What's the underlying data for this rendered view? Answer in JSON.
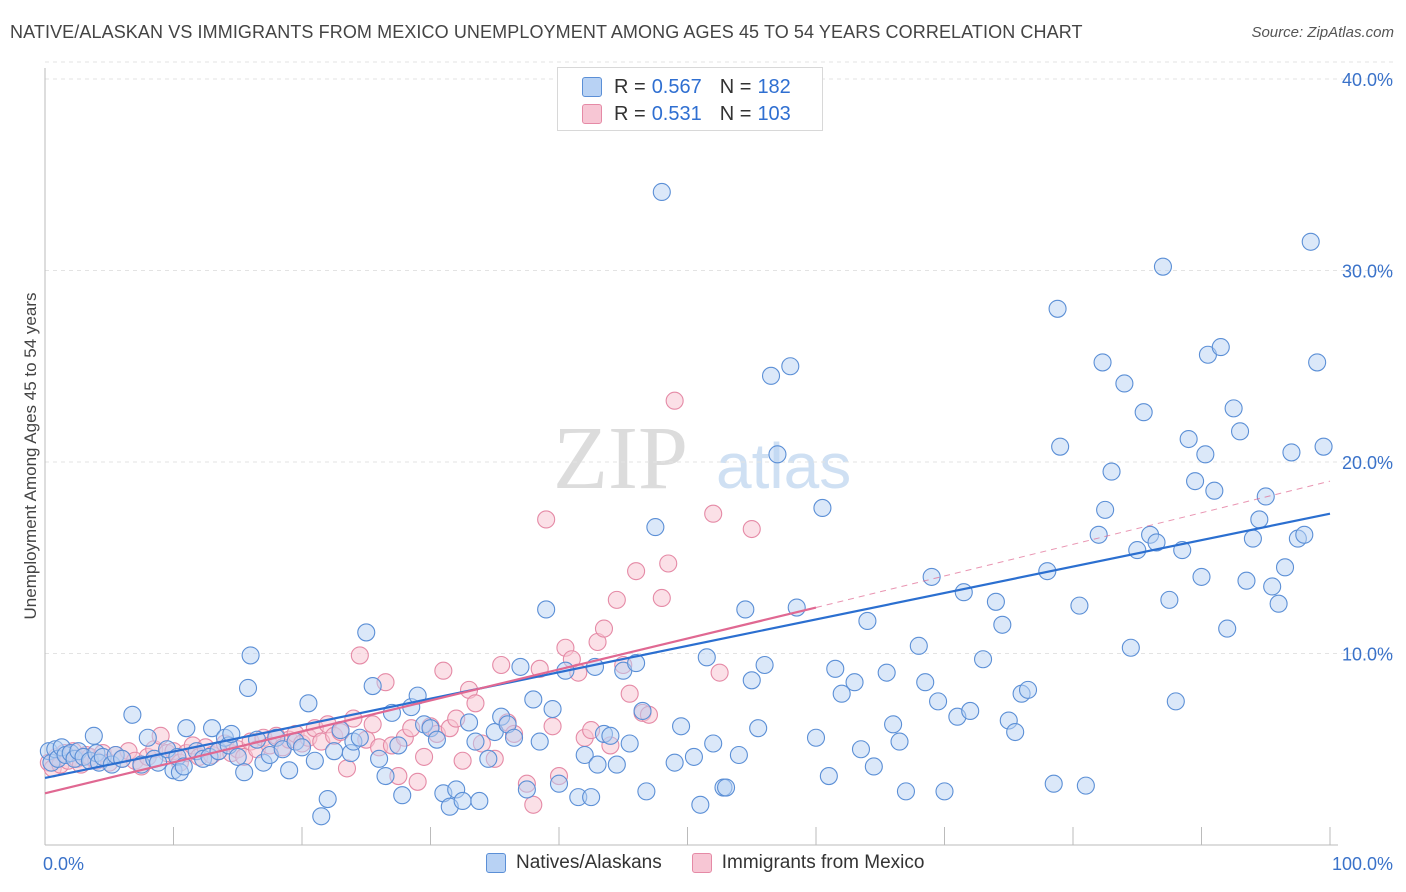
{
  "header": {
    "title": "NATIVE/ALASKAN VS IMMIGRANTS FROM MEXICO UNEMPLOYMENT AMONG AGES 45 TO 54 YEARS CORRELATION CHART",
    "source": "Source: ZipAtlas.com"
  },
  "watermark": {
    "part1": "ZIP",
    "part2": "atlas"
  },
  "stats_legend": {
    "rows": [
      {
        "r_label": "R =",
        "r_value": "0.567",
        "n_label": "N =",
        "n_value": "182"
      },
      {
        "r_label": "R =",
        "r_value": "0.531",
        "n_label": "N =",
        "n_value": "103"
      }
    ]
  },
  "chart_data": {
    "type": "scatter",
    "title": "NATIVE/ALASKAN VS IMMIGRANTS FROM MEXICO UNEMPLOYMENT AMONG AGES 45 TO 54 YEARS CORRELATION CHART",
    "xlabel": "",
    "ylabel": "Unemployment Among Ages 45 to 54 years",
    "xlim": [
      0,
      100
    ],
    "ylim": [
      0,
      42
    ],
    "x_tick_labels": [
      "0.0%",
      "100.0%"
    ],
    "y_ticks": [
      10,
      20,
      30,
      40
    ],
    "y_tick_labels": [
      "10.0%",
      "20.0%",
      "30.0%",
      "40.0%"
    ],
    "grid": true,
    "legend": [
      "Natives/Alaskans",
      "Immigrants from Mexico"
    ],
    "colors": {
      "blue": "#5b8fd6",
      "blue_fill": "#b8d2f4",
      "pink": "#e58aa6",
      "pink_fill": "#f7c6d4",
      "blue_line": "#2b6fd0",
      "pink_line": "#e06892"
    },
    "series": [
      {
        "name": "Natives/Alaskans",
        "R": 0.567,
        "N": 182,
        "trend": {
          "x": [
            0,
            100
          ],
          "y": [
            3.5,
            17.3
          ],
          "style": "solid"
        },
        "points": [
          [
            0.3,
            4.9
          ],
          [
            0.5,
            4.3
          ],
          [
            0.8,
            5.0
          ],
          [
            1.0,
            4.5
          ],
          [
            1.3,
            5.1
          ],
          [
            1.6,
            4.7
          ],
          [
            2.0,
            4.8
          ],
          [
            2.3,
            4.5
          ],
          [
            2.6,
            4.9
          ],
          [
            3.0,
            4.6
          ],
          [
            3.5,
            4.4
          ],
          [
            3.8,
            5.7
          ],
          [
            4.0,
            4.8
          ],
          [
            4.2,
            4.3
          ],
          [
            4.5,
            4.6
          ],
          [
            5.2,
            4.2
          ],
          [
            5.5,
            4.7
          ],
          [
            6.0,
            4.5
          ],
          [
            6.8,
            6.8
          ],
          [
            7.5,
            4.2
          ],
          [
            8.0,
            5.6
          ],
          [
            8.5,
            4.5
          ],
          [
            8.8,
            4.3
          ],
          [
            9.5,
            5.0
          ],
          [
            10.0,
            3.9
          ],
          [
            10.3,
            4.6
          ],
          [
            10.5,
            3.8
          ],
          [
            10.8,
            4.1
          ],
          [
            11.0,
            6.1
          ],
          [
            11.8,
            4.9
          ],
          [
            12.3,
            4.5
          ],
          [
            12.8,
            4.6
          ],
          [
            13.0,
            6.1
          ],
          [
            13.5,
            4.9
          ],
          [
            14.0,
            5.6
          ],
          [
            14.3,
            5.2
          ],
          [
            14.5,
            5.8
          ],
          [
            15.0,
            4.6
          ],
          [
            15.5,
            3.8
          ],
          [
            15.8,
            8.2
          ],
          [
            16.0,
            9.9
          ],
          [
            16.5,
            5.5
          ],
          [
            17.0,
            4.3
          ],
          [
            17.5,
            4.7
          ],
          [
            18.0,
            5.6
          ],
          [
            18.5,
            5.0
          ],
          [
            19.0,
            3.9
          ],
          [
            19.5,
            5.4
          ],
          [
            20.0,
            5.1
          ],
          [
            20.5,
            7.4
          ],
          [
            21.0,
            4.4
          ],
          [
            21.5,
            1.5
          ],
          [
            22.0,
            2.4
          ],
          [
            22.5,
            4.9
          ],
          [
            23.0,
            6.0
          ],
          [
            23.8,
            4.8
          ],
          [
            24.0,
            5.4
          ],
          [
            24.5,
            5.6
          ],
          [
            25.0,
            11.1
          ],
          [
            25.5,
            8.3
          ],
          [
            26.0,
            4.5
          ],
          [
            26.5,
            3.6
          ],
          [
            27.0,
            6.9
          ],
          [
            27.5,
            5.2
          ],
          [
            27.8,
            2.6
          ],
          [
            28.5,
            7.2
          ],
          [
            29.0,
            7.8
          ],
          [
            29.5,
            6.3
          ],
          [
            30.0,
            6.1
          ],
          [
            30.5,
            5.5
          ],
          [
            31.0,
            2.7
          ],
          [
            31.5,
            2.0
          ],
          [
            32.0,
            2.9
          ],
          [
            32.5,
            2.3
          ],
          [
            33.0,
            6.4
          ],
          [
            33.5,
            5.4
          ],
          [
            33.8,
            2.3
          ],
          [
            34.5,
            4.5
          ],
          [
            35.0,
            5.9
          ],
          [
            35.5,
            6.7
          ],
          [
            36.0,
            6.3
          ],
          [
            36.5,
            5.6
          ],
          [
            37.0,
            9.3
          ],
          [
            37.5,
            2.9
          ],
          [
            38.0,
            7.6
          ],
          [
            38.5,
            5.4
          ],
          [
            39.0,
            12.3
          ],
          [
            39.5,
            7.1
          ],
          [
            40.0,
            3.2
          ],
          [
            40.5,
            9.1
          ],
          [
            41.5,
            2.5
          ],
          [
            42.0,
            4.7
          ],
          [
            42.5,
            2.5
          ],
          [
            42.8,
            9.3
          ],
          [
            43.0,
            4.2
          ],
          [
            43.5,
            5.8
          ],
          [
            44.0,
            5.7
          ],
          [
            44.5,
            4.2
          ],
          [
            45.0,
            9.1
          ],
          [
            45.5,
            5.3
          ],
          [
            46.0,
            9.5
          ],
          [
            46.5,
            7.0
          ],
          [
            46.8,
            2.8
          ],
          [
            47.5,
            16.6
          ],
          [
            48.0,
            34.1
          ],
          [
            49.0,
            4.3
          ],
          [
            49.5,
            6.2
          ],
          [
            50.5,
            4.6
          ],
          [
            51.0,
            2.1
          ],
          [
            51.5,
            9.8
          ],
          [
            52.0,
            5.3
          ],
          [
            52.8,
            3.0
          ],
          [
            53.0,
            3.0
          ],
          [
            54.0,
            4.7
          ],
          [
            54.5,
            12.3
          ],
          [
            55.0,
            8.6
          ],
          [
            55.5,
            6.1
          ],
          [
            56.0,
            9.4
          ],
          [
            56.5,
            24.5
          ],
          [
            57.0,
            20.4
          ],
          [
            58.0,
            25.0
          ],
          [
            58.5,
            12.4
          ],
          [
            60.0,
            5.6
          ],
          [
            60.5,
            17.6
          ],
          [
            61.0,
            3.6
          ],
          [
            61.5,
            9.2
          ],
          [
            62.0,
            7.9
          ],
          [
            63.0,
            8.5
          ],
          [
            63.5,
            5.0
          ],
          [
            64.0,
            11.7
          ],
          [
            64.5,
            4.1
          ],
          [
            65.5,
            9.0
          ],
          [
            66.0,
            6.3
          ],
          [
            66.5,
            5.4
          ],
          [
            67.0,
            2.8
          ],
          [
            68.0,
            10.4
          ],
          [
            68.5,
            8.5
          ],
          [
            69.0,
            14.0
          ],
          [
            69.5,
            7.5
          ],
          [
            70.0,
            2.8
          ],
          [
            71.0,
            6.7
          ],
          [
            71.5,
            13.2
          ],
          [
            72.0,
            7.0
          ],
          [
            73.0,
            9.7
          ],
          [
            74.0,
            12.7
          ],
          [
            74.5,
            11.5
          ],
          [
            75.0,
            6.5
          ],
          [
            75.5,
            5.9
          ],
          [
            76.0,
            7.9
          ],
          [
            76.5,
            8.1
          ],
          [
            78.0,
            14.3
          ],
          [
            78.5,
            3.2
          ],
          [
            78.8,
            28.0
          ],
          [
            79.0,
            20.8
          ],
          [
            80.5,
            12.5
          ],
          [
            81.0,
            3.1
          ],
          [
            82.0,
            16.2
          ],
          [
            82.3,
            25.2
          ],
          [
            82.5,
            17.5
          ],
          [
            83.0,
            19.5
          ],
          [
            84.0,
            24.1
          ],
          [
            84.5,
            10.3
          ],
          [
            85.0,
            15.4
          ],
          [
            85.5,
            22.6
          ],
          [
            86.0,
            16.2
          ],
          [
            86.5,
            15.8
          ],
          [
            87.0,
            30.2
          ],
          [
            87.5,
            12.8
          ],
          [
            88.0,
            7.5
          ],
          [
            88.5,
            15.4
          ],
          [
            89.0,
            21.2
          ],
          [
            89.5,
            19.0
          ],
          [
            90.0,
            14.0
          ],
          [
            90.3,
            20.4
          ],
          [
            90.5,
            25.6
          ],
          [
            91.0,
            18.5
          ],
          [
            91.5,
            26.0
          ],
          [
            92.0,
            11.3
          ],
          [
            92.5,
            22.8
          ],
          [
            93.0,
            21.6
          ],
          [
            93.5,
            13.8
          ],
          [
            94.0,
            16.0
          ],
          [
            94.5,
            17.0
          ],
          [
            95.0,
            18.2
          ],
          [
            95.5,
            13.5
          ],
          [
            96.0,
            12.6
          ],
          [
            96.5,
            14.5
          ],
          [
            97.0,
            20.5
          ],
          [
            97.5,
            16.0
          ],
          [
            98.0,
            16.2
          ],
          [
            98.5,
            31.5
          ],
          [
            99.0,
            25.2
          ],
          [
            99.5,
            20.8
          ]
        ]
      },
      {
        "name": "Immigrants from Mexico",
        "R": 0.531,
        "N": 103,
        "trend": {
          "x": [
            0,
            60
          ],
          "y": [
            2.7,
            12.4
          ],
          "style": "solid"
        },
        "trend_extension": {
          "x": [
            60,
            100
          ],
          "y": [
            12.4,
            19.0
          ],
          "style": "dashed"
        },
        "points": [
          [
            0.3,
            4.3
          ],
          [
            0.6,
            4.0
          ],
          [
            0.9,
            4.6
          ],
          [
            1.2,
            4.2
          ],
          [
            1.5,
            4.8
          ],
          [
            1.8,
            4.4
          ],
          [
            2.2,
            4.9
          ],
          [
            2.5,
            4.5
          ],
          [
            2.8,
            4.2
          ],
          [
            3.2,
            4.7
          ],
          [
            3.5,
            4.6
          ],
          [
            4.0,
            4.4
          ],
          [
            4.5,
            4.8
          ],
          [
            5.0,
            4.3
          ],
          [
            5.5,
            4.7
          ],
          [
            6.0,
            4.5
          ],
          [
            6.5,
            4.9
          ],
          [
            7.0,
            4.4
          ],
          [
            7.5,
            4.1
          ],
          [
            8.0,
            4.6
          ],
          [
            8.5,
            5.0
          ],
          [
            9.0,
            5.7
          ],
          [
            9.5,
            4.8
          ],
          [
            10.0,
            4.9
          ],
          [
            10.5,
            4.3
          ],
          [
            11.0,
            4.8
          ],
          [
            11.5,
            5.2
          ],
          [
            12.0,
            4.6
          ],
          [
            12.5,
            5.1
          ],
          [
            13.0,
            4.7
          ],
          [
            13.5,
            4.9
          ],
          [
            14.0,
            5.3
          ],
          [
            14.5,
            4.8
          ],
          [
            15.0,
            5.0
          ],
          [
            15.5,
            4.6
          ],
          [
            16.0,
            5.4
          ],
          [
            16.5,
            5.0
          ],
          [
            17.0,
            5.6
          ],
          [
            17.5,
            5.2
          ],
          [
            18.0,
            5.7
          ],
          [
            18.5,
            5.1
          ],
          [
            19.0,
            5.5
          ],
          [
            19.5,
            5.8
          ],
          [
            20.0,
            5.3
          ],
          [
            20.5,
            5.6
          ],
          [
            21.0,
            6.1
          ],
          [
            21.5,
            5.4
          ],
          [
            22.0,
            6.3
          ],
          [
            22.5,
            5.7
          ],
          [
            23.0,
            5.9
          ],
          [
            23.5,
            4.0
          ],
          [
            24.0,
            6.6
          ],
          [
            24.5,
            9.9
          ],
          [
            25.0,
            5.5
          ],
          [
            25.5,
            6.3
          ],
          [
            26.0,
            5.1
          ],
          [
            26.5,
            8.5
          ],
          [
            27.0,
            5.2
          ],
          [
            27.5,
            3.6
          ],
          [
            28.0,
            5.6
          ],
          [
            28.5,
            6.1
          ],
          [
            29.0,
            3.3
          ],
          [
            29.5,
            4.6
          ],
          [
            30.0,
            6.2
          ],
          [
            30.5,
            5.8
          ],
          [
            31.0,
            9.1
          ],
          [
            31.5,
            6.1
          ],
          [
            32.0,
            6.6
          ],
          [
            32.5,
            4.4
          ],
          [
            33.0,
            8.1
          ],
          [
            33.5,
            7.4
          ],
          [
            34.0,
            5.3
          ],
          [
            35.0,
            4.5
          ],
          [
            35.5,
            9.4
          ],
          [
            36.0,
            6.4
          ],
          [
            36.5,
            5.8
          ],
          [
            37.5,
            3.2
          ],
          [
            38.0,
            2.1
          ],
          [
            38.5,
            9.2
          ],
          [
            39.0,
            17.0
          ],
          [
            39.5,
            6.2
          ],
          [
            40.0,
            3.6
          ],
          [
            40.5,
            10.3
          ],
          [
            41.0,
            9.7
          ],
          [
            41.5,
            9.0
          ],
          [
            42.0,
            5.6
          ],
          [
            42.5,
            6.0
          ],
          [
            43.0,
            10.6
          ],
          [
            43.5,
            11.3
          ],
          [
            44.0,
            5.2
          ],
          [
            44.5,
            12.8
          ],
          [
            45.0,
            9.4
          ],
          [
            45.5,
            7.9
          ],
          [
            46.0,
            14.3
          ],
          [
            46.5,
            6.9
          ],
          [
            47.0,
            6.8
          ],
          [
            48.0,
            12.9
          ],
          [
            48.5,
            14.7
          ],
          [
            49.0,
            23.2
          ],
          [
            52.0,
            17.3
          ],
          [
            52.5,
            9.0
          ],
          [
            55.0,
            16.5
          ]
        ]
      }
    ]
  }
}
